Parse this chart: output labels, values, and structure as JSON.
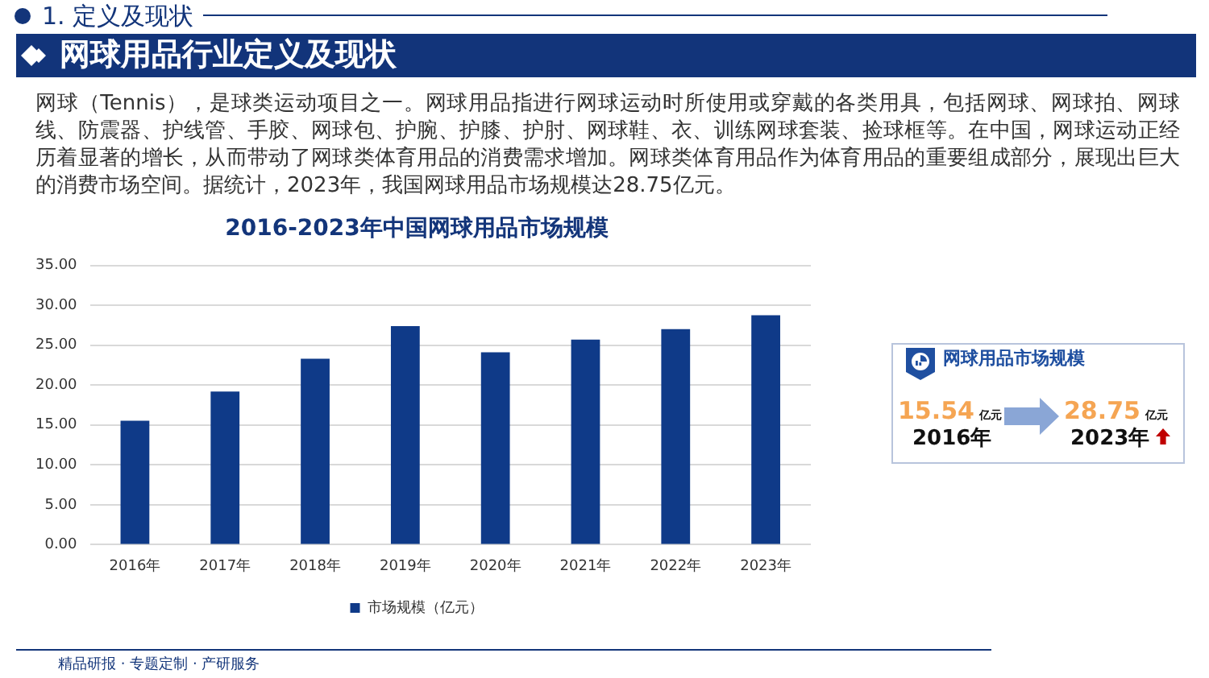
{
  "chart_data": [
    {
      "type": "bar",
      "title": "2016-2023年中国网球用品市场规模",
      "categories": [
        "2016年",
        "2017年",
        "2018年",
        "2019年",
        "2020年",
        "2021年",
        "2022年",
        "2023年"
      ],
      "series": [
        {
          "name": "市场规模（亿元）",
          "color": "#0f3a88",
          "values": [
            15.54,
            19.2,
            23.3,
            27.4,
            24.1,
            25.7,
            27.0,
            28.75
          ]
        }
      ],
      "ylim": [
        0,
        35
      ],
      "yticks": [
        {
          "value": 0,
          "label": "0.00"
        },
        {
          "value": 5,
          "label": "5.00"
        },
        {
          "value": 10,
          "label": "10.00"
        },
        {
          "value": 15,
          "label": "15.00"
        },
        {
          "value": 20,
          "label": "20.00"
        },
        {
          "value": 25,
          "label": "25.00"
        },
        {
          "value": 30,
          "label": "30.00"
        },
        {
          "value": 35,
          "label": "35.00"
        }
      ],
      "grid": "y",
      "legend": "bottom",
      "annotations": [
        "1. 定义及现状",
        "网球用品行业定义及现状",
        "网球（Tennis），是球类运动项目之一。网球用品指进行网球运动时所使用或穿戴的各类用具，包括网球、网球拍、网球线、防震器、护线管、手胶、网球包、护腕、护膝、护肘、网球鞋、衣、训练网球套装、捡球框等。在中国，网球运动正经历着显著的增长，从而带动了网球类体育用品的消费需求增加。网球类体育用品作为体育用品的重要组成部分，展现出巨大的消费市场空间。据统计，2023年，我国网球用品市场规模达28.75亿元。",
        "精品研报 · 专题定制 · 产研服务"
      ]
    },
    {
      "type": "other",
      "title": "网球用品市场规模",
      "annotations": [
        "15.54",
        "亿元",
        "2016年",
        "28.75",
        "亿元",
        "2023年"
      ]
    }
  ]
}
